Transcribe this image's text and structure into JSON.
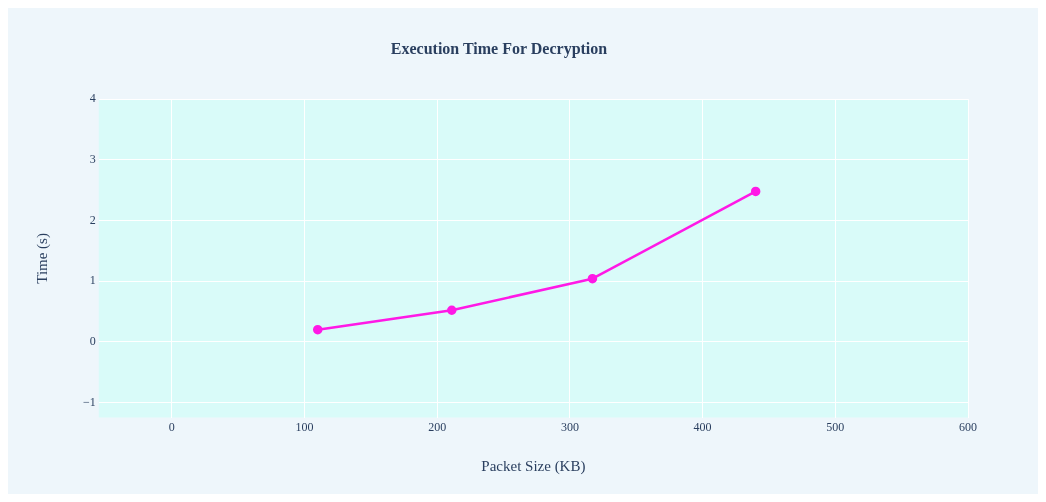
{
  "chart_data": {
    "type": "line",
    "title": "Execution Time For Decryption",
    "xlabel": "Packet Size (KB)",
    "ylabel": "Time (s)",
    "x": [
      110,
      211,
      317,
      440
    ],
    "series": [
      {
        "color": "#ff19e6",
        "values": [
          0.2,
          0.52,
          1.04,
          2.48
        ]
      }
    ],
    "xlim": [
      -55,
      600
    ],
    "xticks": [
      0,
      100,
      200,
      300,
      400,
      500,
      600
    ],
    "ylim": [
      -1.25,
      4
    ],
    "yticks": [
      {
        "value": -1,
        "label": "−1"
      },
      0,
      1,
      2,
      3,
      4
    ],
    "grid": true,
    "marker": "circle",
    "line_style": "solid",
    "legend": false
  }
}
